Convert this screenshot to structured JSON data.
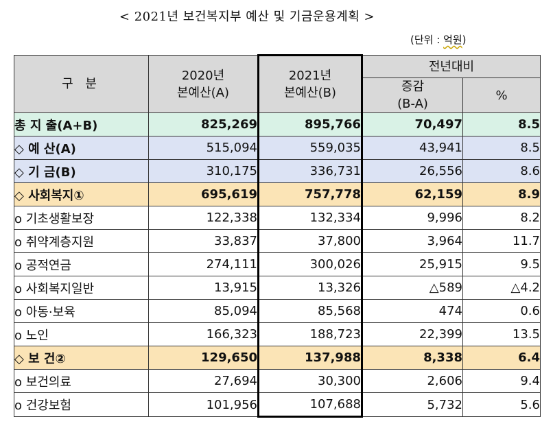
{
  "title": "< 2021년 보건복지부 예산 및 기금운용계획 >",
  "unit": {
    "prefix": "(단위 : ",
    "value": "억원",
    "suffix": ")"
  },
  "header": {
    "category": "구 분",
    "col2020_l1": "2020년",
    "col2020_l2": "본예산(A)",
    "col2021_l1": "2021년",
    "col2021_l2": "본예산(B)",
    "yoy": "전년대비",
    "diff_l1": "증감",
    "diff_l2": "(B-A)",
    "pct": "%"
  },
  "rows": [
    {
      "label": "총 지 출(A+B)",
      "v2020": "825,269",
      "v2021": "895,766",
      "diff": "70,497",
      "pct": "8.5"
    },
    {
      "label": "◇ 예 산(A)",
      "v2020": "515,094",
      "v2021": "559,035",
      "diff": "43,941",
      "pct": "8.5"
    },
    {
      "label": "◇ 기 금(B)",
      "v2020": "310,175",
      "v2021": "336,731",
      "diff": "26,556",
      "pct": "8.6"
    },
    {
      "label": "◇ 사회복지①",
      "v2020": "695,619",
      "v2021": "757,778",
      "diff": "62,159",
      "pct": "8.9"
    },
    {
      "label": "o 기초생활보장",
      "v2020": "122,338",
      "v2021": "132,334",
      "diff": "9,996",
      "pct": "8.2"
    },
    {
      "label": "o 취약계층지원",
      "v2020": "33,837",
      "v2021": "37,800",
      "diff": "3,964",
      "pct": "11.7"
    },
    {
      "label": "o 공적연금",
      "v2020": "274,111",
      "v2021": "300,026",
      "diff": "25,915",
      "pct": "9.5"
    },
    {
      "label": "o 사회복지일반",
      "v2020": "13,915",
      "v2021": "13,326",
      "diff": "△589",
      "pct": "△4.2"
    },
    {
      "label": "o 아동·보육",
      "v2020": "85,094",
      "v2021": "85,568",
      "diff": "474",
      "pct": "0.6"
    },
    {
      "label": "o 노인",
      "v2020": "166,323",
      "v2021": "188,723",
      "diff": "22,399",
      "pct": "13.5"
    },
    {
      "label": "◇ 보 건②",
      "v2020": "129,650",
      "v2021": "137,988",
      "diff": "8,338",
      "pct": "6.4"
    },
    {
      "label": "o 보건의료",
      "v2020": "27,694",
      "v2021": "30,300",
      "diff": "2,606",
      "pct": "9.4"
    },
    {
      "label": "o 건강보험",
      "v2020": "101,956",
      "v2021": "107,688",
      "diff": "5,732",
      "pct": "5.6"
    }
  ]
}
